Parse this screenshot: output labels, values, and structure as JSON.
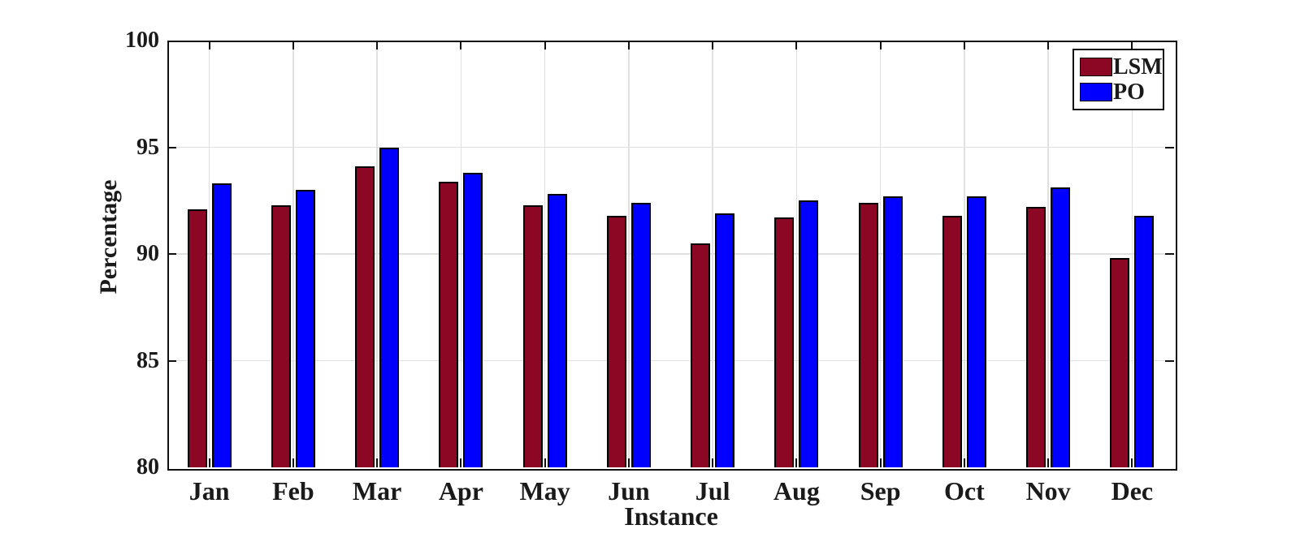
{
  "colors": {
    "lsm_bar": "#8C0723",
    "po_bar": "#0000FF",
    "bar_edge": "#000000",
    "axis": "#101010",
    "grid": "#E0E0E0",
    "text": "#1A1A1A",
    "background": "#FFFFFF"
  },
  "chart_data": {
    "type": "bar",
    "title": "",
    "xlabel": "Instance",
    "ylabel": "Percentage",
    "ylim": [
      80,
      100
    ],
    "yticks": [
      80,
      85,
      90,
      95,
      100
    ],
    "grid": true,
    "legend_position": "top-right",
    "categories": [
      "Jan",
      "Feb",
      "Mar",
      "Apr",
      "May",
      "Jun",
      "Jul",
      "Aug",
      "Sep",
      "Oct",
      "Nov",
      "Dec"
    ],
    "series": [
      {
        "name": "LSM",
        "color": "#8C0723",
        "values": [
          92.1,
          92.3,
          94.1,
          93.4,
          92.3,
          91.8,
          90.5,
          91.7,
          92.4,
          91.8,
          92.2,
          89.8
        ]
      },
      {
        "name": "PO",
        "color": "#0000FF",
        "values": [
          93.3,
          93.0,
          95.0,
          93.8,
          92.8,
          92.4,
          91.9,
          92.5,
          92.7,
          92.7,
          93.1,
          91.8
        ]
      }
    ]
  }
}
